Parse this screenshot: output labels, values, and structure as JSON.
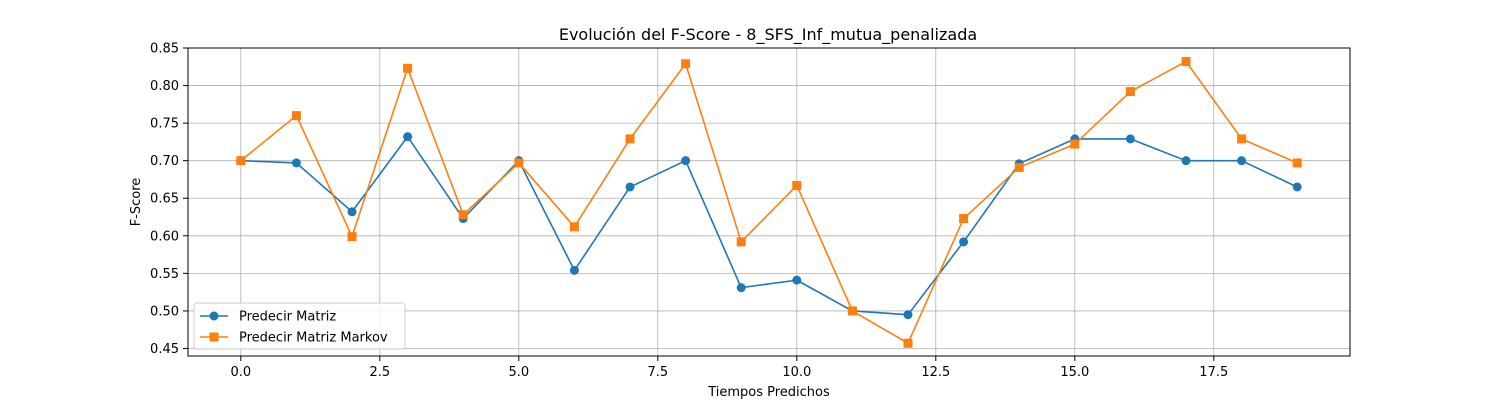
{
  "chart_data": {
    "type": "line",
    "title": "Evolución del F-Score - 8_SFS_Inf_mutua_penalizada",
    "xlabel": "Tiempos Predichos",
    "ylabel": "F-Score",
    "xlim": [
      -0.95,
      19.95
    ],
    "ylim": [
      0.44,
      0.85
    ],
    "xticks": [
      0.0,
      2.5,
      5.0,
      7.5,
      10.0,
      12.5,
      15.0,
      17.5
    ],
    "xtick_labels": [
      "0.0",
      "2.5",
      "5.0",
      "7.5",
      "10.0",
      "12.5",
      "15.0",
      "17.5"
    ],
    "yticks": [
      0.45,
      0.5,
      0.55,
      0.6,
      0.65,
      0.7,
      0.75,
      0.8,
      0.85
    ],
    "ytick_labels": [
      "0.45",
      "0.50",
      "0.55",
      "0.60",
      "0.65",
      "0.70",
      "0.75",
      "0.80",
      "0.85"
    ],
    "grid": true,
    "legend": "lower-left",
    "x": [
      0,
      1,
      2,
      3,
      4,
      5,
      6,
      7,
      8,
      9,
      10,
      11,
      12,
      13,
      14,
      15,
      16,
      17,
      18,
      19
    ],
    "series": [
      {
        "name": "Predecir Matriz",
        "color": "#1f77b4",
        "marker": "circle",
        "values": [
          0.7,
          0.697,
          0.632,
          0.732,
          0.623,
          0.7,
          0.554,
          0.665,
          0.7,
          0.531,
          0.541,
          0.5,
          0.495,
          0.592,
          0.696,
          0.729,
          0.729,
          0.7,
          0.7,
          0.665
        ]
      },
      {
        "name": "Predecir Matriz Markov",
        "color": "#ff7f0e",
        "marker": "square",
        "values": [
          0.7,
          0.76,
          0.599,
          0.823,
          0.628,
          0.697,
          0.612,
          0.729,
          0.829,
          0.592,
          0.667,
          0.5,
          0.457,
          0.623,
          0.691,
          0.722,
          0.792,
          0.832,
          0.729,
          0.697
        ]
      }
    ]
  }
}
